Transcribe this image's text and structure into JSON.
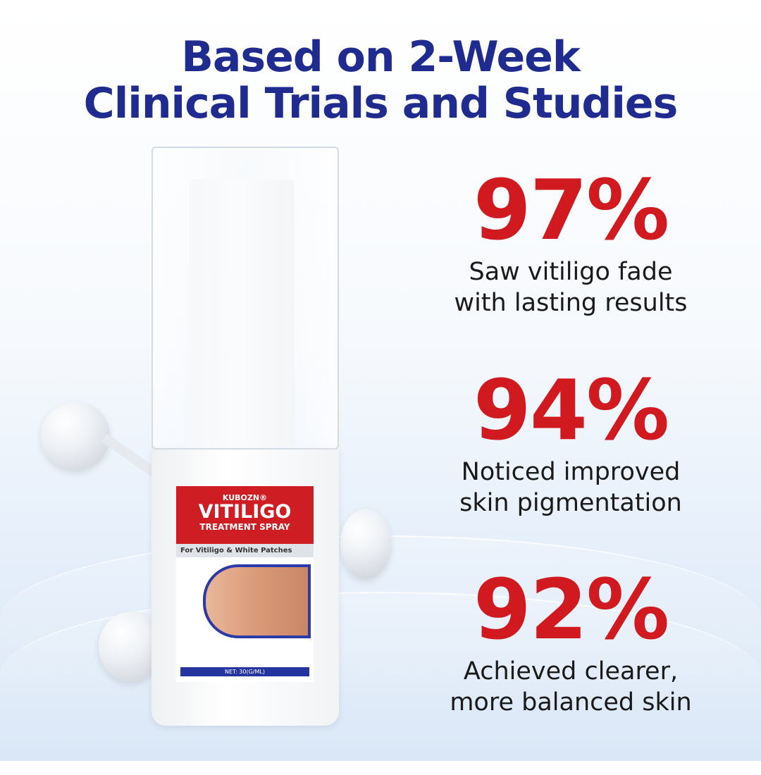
{
  "headline": {
    "line1": "Based on 2-Week",
    "line2": "Clinical Trials and Studies"
  },
  "stats": [
    {
      "value": "97%",
      "line1": "Saw vitiligo fade",
      "line2": "with lasting results"
    },
    {
      "value": "94%",
      "line1": "Noticed improved",
      "line2": "skin pigmentation"
    },
    {
      "value": "92%",
      "line1": "Achieved clearer,",
      "line2": "more balanced skin"
    }
  ],
  "product": {
    "brand": "KUBOZN®",
    "name": "VITILIGO",
    "type": "TREATMENT SPRAY",
    "tagline": "For Vitiligo & White Patches",
    "net": "NET: 30(G/ML)"
  },
  "colors": {
    "headline": "#1f2b8e",
    "stat": "#d11a1f",
    "label_red": "#cf1d24"
  }
}
